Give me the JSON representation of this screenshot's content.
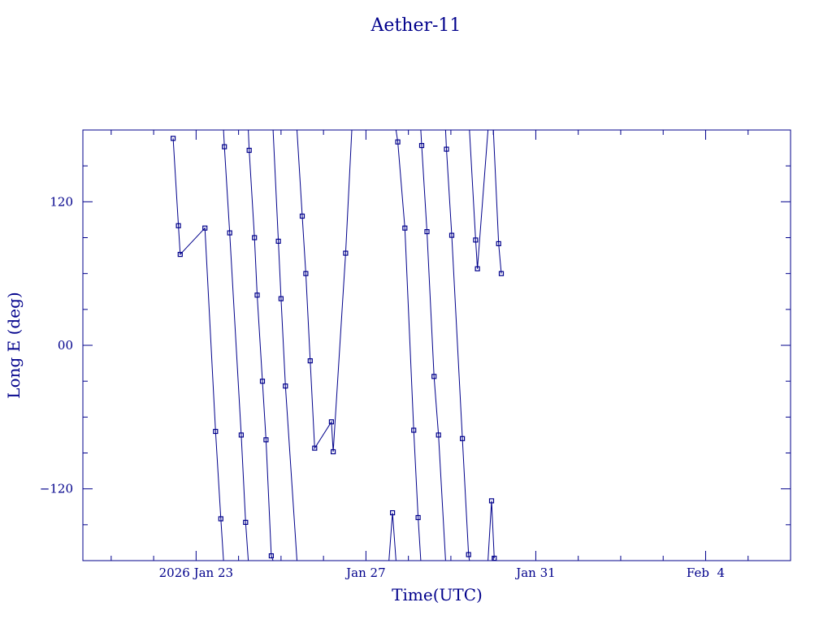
{
  "chart_data": {
    "type": "scatter",
    "title": "Aether-11",
    "xlabel": "Time(UTC)",
    "ylabel": "Long E (deg)",
    "color": "#00008b",
    "x_range": [
      "2026-01-20T08:00:00Z",
      "2026-02-06T00:00:00Z"
    ],
    "ylim": [
      -180,
      180
    ],
    "y_ticks": [
      -120,
      0,
      120
    ],
    "y_tick_labels": [
      "−120",
      "00",
      "120"
    ],
    "x_ticks": [
      {
        "t": "2026-01-23T00:00:00Z",
        "label": "2026 Jan 23"
      },
      {
        "t": "2026-01-27T00:00:00Z",
        "label": "Jan 27"
      },
      {
        "t": "2026-01-31T00:00:00Z",
        "label": "Jan 31"
      },
      {
        "t": "2026-02-04T00:00:00Z",
        "label": "Feb  4"
      }
    ],
    "grid": false,
    "legend": "none",
    "series": [
      {
        "points": [
          [
            "2026-01-22T11:00:00Z",
            173
          ],
          [
            "2026-01-22T14:00:00Z",
            100
          ],
          [
            "2026-01-22T15:00:00Z",
            76
          ],
          [
            "2026-01-23T05:00:00Z",
            98
          ],
          [
            "2026-01-23T11:00:00Z",
            -72
          ],
          [
            "2026-01-23T14:00:00Z",
            -145
          ],
          [
            "2026-01-23T15:30:00Z",
            -180
          ]
        ]
      },
      {
        "points": [
          [
            "2026-01-23T15:30:00Z",
            180
          ],
          [
            "2026-01-23T16:00:00Z",
            166
          ],
          [
            "2026-01-23T19:00:00Z",
            94
          ],
          [
            "2026-01-24T01:30:00Z",
            -75
          ],
          [
            "2026-01-24T04:00:00Z",
            -148
          ],
          [
            "2026-01-24T05:30:00Z",
            -180
          ]
        ]
      },
      {
        "points": [
          [
            "2026-01-24T05:30:00Z",
            180
          ],
          [
            "2026-01-24T06:00:00Z",
            163
          ],
          [
            "2026-01-24T09:00:00Z",
            90
          ],
          [
            "2026-01-24T10:30:00Z",
            42
          ],
          [
            "2026-01-24T13:30:00Z",
            -30
          ],
          [
            "2026-01-24T15:30:00Z",
            -79
          ],
          [
            "2026-01-24T18:30:00Z",
            -176
          ],
          [
            "2026-01-24T19:30:00Z",
            -180
          ]
        ]
      },
      {
        "points": [
          [
            "2026-01-24T19:30:00Z",
            180
          ],
          [
            "2026-01-24T22:30:00Z",
            87
          ],
          [
            "2026-01-25T00:00:00Z",
            39
          ],
          [
            "2026-01-25T02:30:00Z",
            -34
          ],
          [
            "2026-01-25T09:00:00Z",
            -180
          ]
        ]
      },
      {
        "points": [
          [
            "2026-01-25T09:00:00Z",
            180
          ],
          [
            "2026-01-25T12:00:00Z",
            108
          ],
          [
            "2026-01-25T14:00:00Z",
            60
          ],
          [
            "2026-01-25T16:30:00Z",
            -13
          ],
          [
            "2026-01-25T19:00:00Z",
            -86
          ],
          [
            "2026-01-26T04:30:00Z",
            -64
          ],
          [
            "2026-01-26T05:30:00Z",
            -89
          ],
          [
            "2026-01-26T12:30:00Z",
            77
          ],
          [
            "2026-01-26T16:00:00Z",
            180
          ]
        ]
      },
      {
        "points": [
          [
            "2026-01-27T13:00:00Z",
            -180
          ],
          [
            "2026-01-27T15:00:00Z",
            -140
          ],
          [
            "2026-01-27T17:00:00Z",
            -180
          ]
        ]
      },
      {
        "points": [
          [
            "2026-01-27T17:00:00Z",
            180
          ],
          [
            "2026-01-27T18:00:00Z",
            170
          ],
          [
            "2026-01-27T22:00:00Z",
            98
          ],
          [
            "2026-01-28T03:00:00Z",
            -71
          ],
          [
            "2026-01-28T05:30:00Z",
            -144
          ],
          [
            "2026-01-28T07:00:00Z",
            -180
          ]
        ]
      },
      {
        "points": [
          [
            "2026-01-28T07:00:00Z",
            180
          ],
          [
            "2026-01-28T07:30:00Z",
            167
          ],
          [
            "2026-01-28T10:30:00Z",
            95
          ],
          [
            "2026-01-28T14:30:00Z",
            -26
          ],
          [
            "2026-01-28T17:00:00Z",
            -75
          ],
          [
            "2026-01-28T21:00:00Z",
            -180
          ]
        ]
      },
      {
        "points": [
          [
            "2026-01-28T21:00:00Z",
            180
          ],
          [
            "2026-01-28T21:30:00Z",
            164
          ],
          [
            "2026-01-29T00:30:00Z",
            92
          ],
          [
            "2026-01-29T06:30:00Z",
            -78
          ],
          [
            "2026-01-29T10:00:00Z",
            -175
          ],
          [
            "2026-01-29T10:30:00Z",
            -180
          ]
        ]
      },
      {
        "points": [
          [
            "2026-01-29T10:30:00Z",
            180
          ],
          [
            "2026-01-29T14:00:00Z",
            88
          ],
          [
            "2026-01-29T15:00:00Z",
            64
          ],
          [
            "2026-01-29T21:00:00Z",
            180
          ]
        ]
      },
      {
        "points": [
          [
            "2026-01-29T21:00:00Z",
            -180
          ],
          [
            "2026-01-29T23:00:00Z",
            -130
          ],
          [
            "2026-01-30T00:30:00Z",
            -178
          ]
        ]
      },
      {
        "points": [
          [
            "2026-01-30T00:00:00Z",
            180
          ],
          [
            "2026-01-30T03:00:00Z",
            85
          ],
          [
            "2026-01-30T04:30:00Z",
            60
          ]
        ]
      }
    ]
  }
}
